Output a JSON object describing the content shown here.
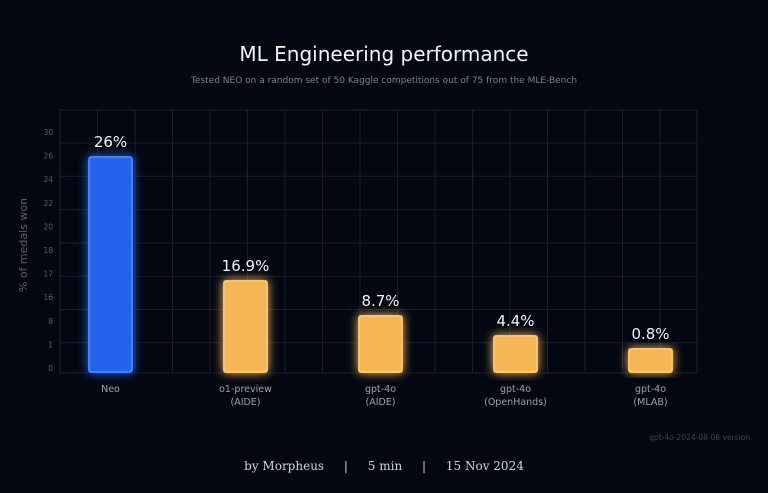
{
  "chart_data": {
    "type": "bar",
    "title": "ML Engineering performance",
    "subtitle": "Tested NEO on a random set of 50 Kaggle competitions out of 75 from the MLE-Bench",
    "ylabel": "% of medals won",
    "xlabel": "",
    "ytick_labels": [
      "30",
      "26",
      "24",
      "22",
      "20",
      "18",
      "17",
      "16",
      "8",
      "1",
      "0"
    ],
    "categories": [
      [
        "Neo"
      ],
      [
        "o1-preview",
        "(AIDE)"
      ],
      [
        "gpt-4o",
        "(AIDE)"
      ],
      [
        "gpt-4o",
        "(OpenHands)"
      ],
      [
        "gpt-4o",
        "(MLAB)"
      ]
    ],
    "values": [
      26,
      16.9,
      8.7,
      4.4,
      0.8
    ],
    "data_labels": [
      "26%",
      "16.9%",
      "8.7%",
      "4.4%",
      "0.8%"
    ],
    "colors": [
      "#2563eb",
      "#f5b657",
      "#f5b657",
      "#f5b657",
      "#f5b657"
    ],
    "grid": true,
    "legend": "none"
  },
  "note": "gpt-4o-2024-08-06 version",
  "footer": {
    "author": "by Morpheus",
    "sep": "|",
    "read_time": "5 min",
    "date": "15 Nov 2024"
  }
}
